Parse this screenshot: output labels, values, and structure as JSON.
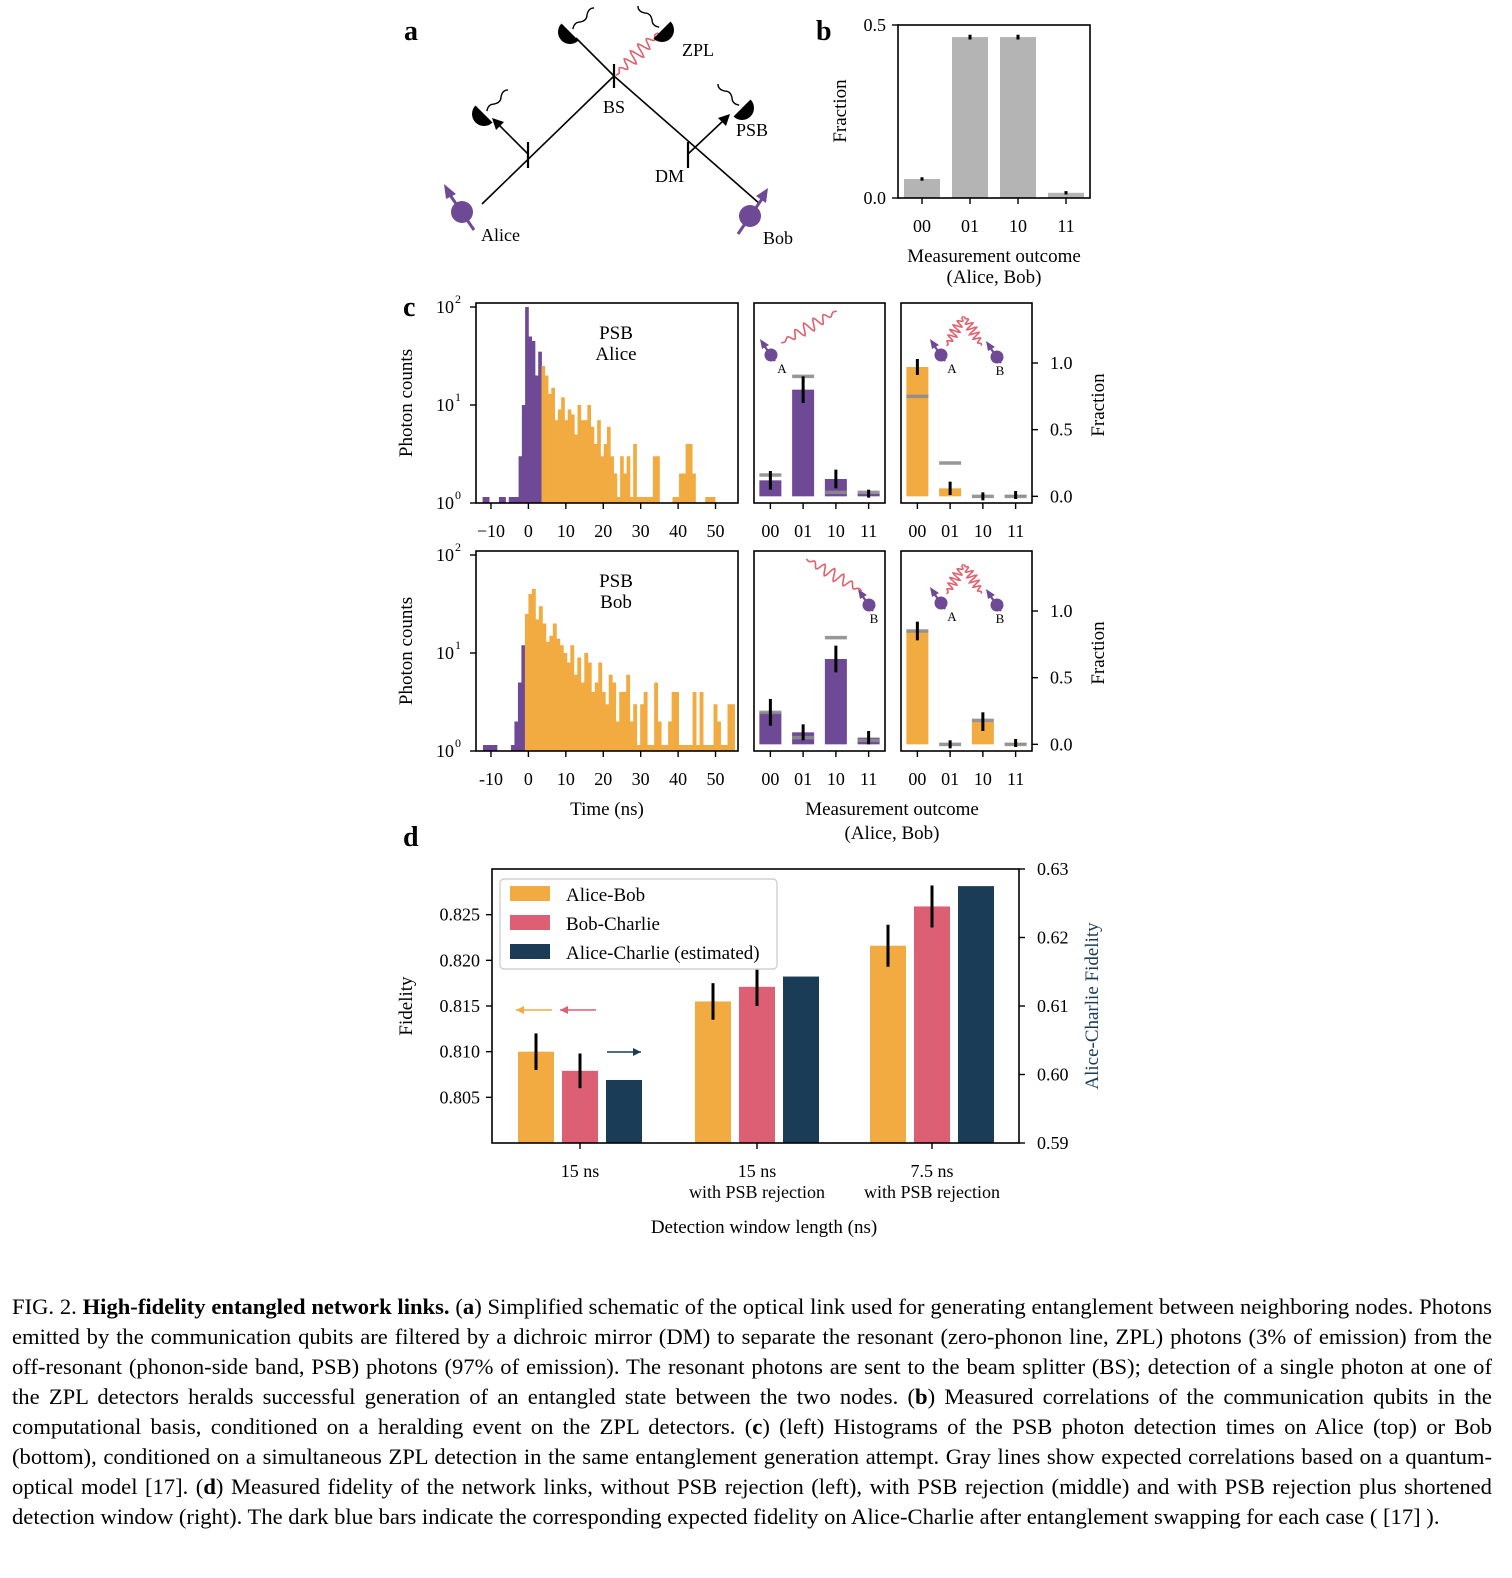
{
  "colors": {
    "orange": "#f2ab40",
    "pink": "#dc5f74",
    "navy": "#1b3c57",
    "purple": "#6e4a96",
    "gray": "#b4b4b4",
    "wave": "#e0606e"
  },
  "panel_a": {
    "letter": "a",
    "labels": {
      "zpl": "ZPL",
      "bs": "BS",
      "psb": "PSB",
      "dm": "DM",
      "alice": "Alice",
      "bob": "Bob"
    }
  },
  "chart_data": [
    {
      "id": "b",
      "letter": "b",
      "type": "bar",
      "categories": [
        "00",
        "01",
        "10",
        "11"
      ],
      "values": [
        0.055,
        0.465,
        0.465,
        0.015
      ],
      "errors": [
        0.002,
        0.004,
        0.004,
        0.002
      ],
      "ylim": [
        0,
        0.5
      ],
      "yticks": [
        "0.0",
        "0.5"
      ],
      "ylabel": "Fraction",
      "xlabel": "Measurement outcome",
      "xlabel2": "(Alice, Bob)"
    },
    {
      "id": "c_hist_alice",
      "letter": "c",
      "type": "bar",
      "label1": "PSB",
      "label2": "Alice",
      "ylabel": "Photon counts",
      "yscale": "log",
      "ylim": [
        1,
        100
      ],
      "yticks": [
        "10",
        "10",
        "10"
      ],
      "ytick_exps": [
        "0",
        "1",
        "2"
      ],
      "xlim": [
        -14,
        56
      ],
      "xticks": [
        "−10",
        "0",
        "10",
        "20",
        "30",
        "40",
        "50"
      ],
      "xtick_vals": [
        -10,
        0,
        10,
        20,
        30,
        40,
        50
      ],
      "bins_start": -14,
      "bin_width": 1,
      "counts": [
        0,
        0,
        1,
        1,
        0,
        0,
        0,
        1,
        1,
        0,
        1,
        1,
        1,
        3,
        10,
        100,
        50,
        45,
        20,
        35,
        25,
        20,
        13,
        15,
        7,
        9,
        12,
        7,
        9,
        8,
        5,
        10,
        7,
        7,
        10,
        6,
        4,
        7,
        3,
        4,
        6,
        3,
        2,
        1,
        3,
        2,
        3,
        1,
        4,
        1,
        1,
        1,
        1,
        1,
        3,
        3,
        0,
        0,
        0,
        0,
        1,
        1,
        2,
        2,
        4,
        4,
        2,
        0,
        0,
        0,
        1,
        1,
        1,
        0,
        0,
        0,
        0,
        0,
        0,
        0
      ],
      "split_at_bin": 20
    },
    {
      "id": "c_hist_bob",
      "type": "bar",
      "label1": "PSB",
      "label2": "Bob",
      "ylabel": "Photon counts",
      "yscale": "log",
      "ylim": [
        1,
        100
      ],
      "yticks": [
        "10",
        "10",
        "10"
      ],
      "ytick_exps": [
        "0",
        "1",
        "2"
      ],
      "xlim": [
        -14,
        56
      ],
      "xticks": [
        "-10",
        "0",
        "10",
        "20",
        "30",
        "40",
        "50"
      ],
      "xtick_vals": [
        -10,
        0,
        10,
        20,
        30,
        40,
        50
      ],
      "xlabel": "Time (ns)",
      "bins_start": -14,
      "bin_width": 1,
      "counts": [
        0,
        0,
        1,
        1,
        1,
        1,
        0,
        0,
        0,
        0,
        1,
        2,
        5,
        12,
        25,
        40,
        45,
        22,
        30,
        20,
        13,
        15,
        20,
        14,
        12,
        10,
        8,
        12,
        6,
        9,
        5,
        10,
        8,
        4,
        5,
        8,
        4,
        3,
        6,
        5,
        2,
        4,
        4,
        6,
        2,
        3,
        1,
        3,
        4,
        1,
        1,
        5,
        2,
        1,
        1,
        2,
        4,
        4,
        1,
        1,
        1,
        1,
        4,
        1,
        4,
        1,
        1,
        1,
        3,
        2,
        1,
        1,
        3,
        3,
        0
      ],
      "split_at_bin": 14
    },
    {
      "id": "c_single_alice",
      "type": "bar",
      "categories": [
        "00",
        "01",
        "10",
        "11"
      ],
      "values": [
        0.12,
        0.8,
        0.13,
        0.02
      ],
      "errors": [
        0.07,
        0.1,
        0.07,
        0.03
      ],
      "expected": [
        0.16,
        0.9,
        0.03,
        0.03
      ],
      "ylim": [
        -0.05,
        1.45
      ],
      "marker_labels": [
        "A"
      ]
    },
    {
      "id": "c_joint_top",
      "type": "bar",
      "categories": [
        "00",
        "01",
        "10",
        "11"
      ],
      "values": [
        0.97,
        0.06,
        0.0,
        0.01
      ],
      "errors": [
        0.06,
        0.05,
        0.03,
        0.03
      ],
      "expected": [
        0.75,
        0.25,
        0.0,
        0.0
      ],
      "ylim": [
        -0.05,
        1.45
      ],
      "yticks": [
        "0.0",
        "0.5",
        "1.0"
      ],
      "ylabel": "Fraction",
      "marker_labels": [
        "A",
        "B"
      ]
    },
    {
      "id": "c_single_bob",
      "type": "bar",
      "categories": [
        "00",
        "01",
        "10",
        "11"
      ],
      "values": [
        0.24,
        0.09,
        0.64,
        0.05
      ],
      "errors": [
        0.1,
        0.06,
        0.1,
        0.05
      ],
      "expected": [
        0.24,
        0.05,
        0.8,
        0.03
      ],
      "ylim": [
        -0.05,
        1.45
      ],
      "marker_labels": [
        "B"
      ]
    },
    {
      "id": "c_joint_bottom",
      "type": "bar",
      "categories": [
        "00",
        "01",
        "10",
        "11"
      ],
      "values": [
        0.85,
        0.0,
        0.17,
        0.01
      ],
      "errors": [
        0.07,
        0.03,
        0.07,
        0.03
      ],
      "expected": [
        0.85,
        0.0,
        0.18,
        0.0
      ],
      "ylim": [
        -0.05,
        1.45
      ],
      "yticks": [
        "0.0",
        "0.5",
        "1.0"
      ],
      "ylabel": "Fraction",
      "marker_labels": [
        "A",
        "B"
      ],
      "xlabel": "Measurement outcome",
      "xlabel2": "(Alice, Bob)"
    },
    {
      "id": "d",
      "letter": "d",
      "type": "bar",
      "categories": [
        "15 ns",
        "15 ns",
        "7.5 ns"
      ],
      "categories2": [
        "",
        "with PSB rejection",
        "with PSB rejection"
      ],
      "xlabel": "Detection window length (ns)",
      "ylabel": "Fidelity",
      "ylabel_right": "Alice-Charlie Fidelity",
      "ylim": [
        0.8,
        0.83
      ],
      "yticks": [
        "0.805",
        "0.810",
        "0.815",
        "0.820",
        "0.825"
      ],
      "ylim_right": [
        0.59,
        0.63
      ],
      "yticks_right": [
        "0.59",
        "0.60",
        "0.61",
        "0.62",
        "0.63"
      ],
      "series": [
        {
          "name": "Alice-Bob",
          "axis": "left",
          "values": [
            0.81,
            0.8155,
            0.8216
          ],
          "errors": [
            0.002,
            0.002,
            0.0023
          ]
        },
        {
          "name": "Bob-Charlie",
          "axis": "left",
          "values": [
            0.8079,
            0.8171,
            0.8259
          ],
          "errors": [
            0.0019,
            0.0021,
            0.0023
          ]
        },
        {
          "name": "Alice-Charlie (estimated)",
          "axis": "right",
          "values": [
            0.5992,
            0.6143,
            0.6275
          ]
        }
      ]
    }
  ],
  "caption": {
    "fig": "FIG. 2.",
    "title": "High-fidelity entangled network links.",
    "a": "a",
    "t1": "Simplified schematic of the optical link used for generating entanglement between neighboring nodes. Photons emitted by the communication qubits are filtered by a dichroic mirror (DM) to separate the resonant (zero-phonon line, ZPL) photons (3% of emission) from the off-resonant (phonon-side band, PSB) photons (97% of emission). The resonant photons are sent to the beam splitter (BS); detection of a single photon at one of the ZPL detectors heralds successful generation of an entangled state between the two nodes.",
    "b": "b",
    "t2": "Measured correlations of the communication qubits in the computational basis, conditioned on a heralding event on the ZPL detectors.",
    "c": "c",
    "t3": "(left) Histograms of the PSB photon detection times on Alice (top) or Bob (bottom), conditioned on a simultaneous ZPL detection in the same entanglement generation attempt. Gray lines show expected correlations based on a quantum-optical model [17].",
    "d": "d",
    "t4": "Measured fidelity of the network links, without PSB rejection (left), with PSB rejection (middle) and with PSB rejection plus shortened detection window (right). The dark blue bars indicate the corresponding expected fidelity on Alice-Charlie after entanglement swapping for each case ( [17] )."
  }
}
